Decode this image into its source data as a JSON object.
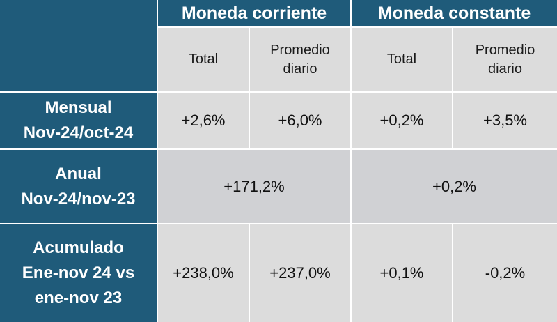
{
  "header": {
    "group1": "Moneda corriente",
    "group2": "Moneda constante",
    "sub": {
      "total": "Total",
      "promedio_line1": "Promedio",
      "promedio_line2": "diario"
    }
  },
  "rows": {
    "mensual": {
      "label_line1": "Mensual",
      "label_line2": "Nov-24/oct-24",
      "corriente_total": "+2,6%",
      "corriente_promedio": "+6,0%",
      "constante_total": "+0,2%",
      "constante_promedio": "+3,5%"
    },
    "anual": {
      "label_line1": "Anual",
      "label_line2": "Nov-24/nov-23",
      "corriente": "+171,2%",
      "constante": "+0,2%"
    },
    "acumulado": {
      "label_line1": "Acumulado",
      "label_line2": "Ene-nov 24 vs",
      "label_line3": "ene-nov 23",
      "corriente_total": "+238,0%",
      "corriente_promedio": "+237,0%",
      "constante_total": "+0,1%",
      "constante_promedio": "-0,2%"
    }
  },
  "colors": {
    "header_bg": "#1f5b7a",
    "cell_bg": "#dcdcdc",
    "border": "#ffffff"
  }
}
